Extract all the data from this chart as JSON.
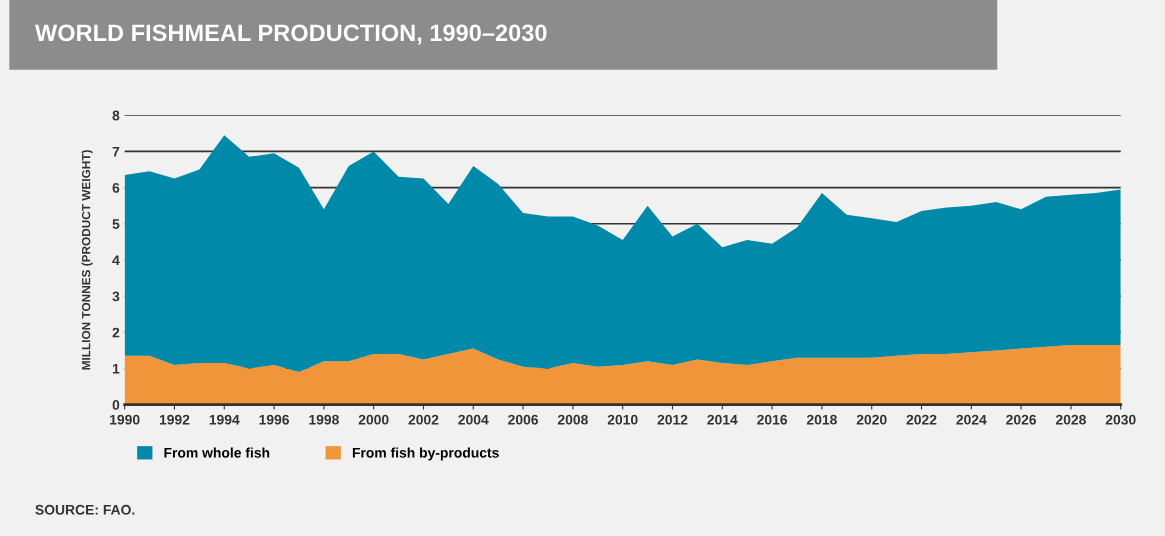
{
  "chart_data": {
    "type": "area",
    "stacked": true,
    "title": "WORLD FISHMEAL PRODUCTION, 1990–2030",
    "ylabel": "MILLION TONNES (PRODUCT WEIGHT)",
    "x": [
      1990,
      1991,
      1992,
      1993,
      1994,
      1995,
      1996,
      1997,
      1998,
      1999,
      2000,
      2001,
      2002,
      2003,
      2004,
      2005,
      2006,
      2007,
      2008,
      2009,
      2010,
      2011,
      2012,
      2013,
      2014,
      2015,
      2016,
      2017,
      2018,
      2019,
      2020,
      2021,
      2022,
      2023,
      2024,
      2025,
      2026,
      2027,
      2028,
      2029,
      2030
    ],
    "series": [
      {
        "name": "From fish by-products",
        "color": "#f0953a",
        "values": [
          1.35,
          1.35,
          1.1,
          1.15,
          1.15,
          1.0,
          1.1,
          0.9,
          1.2,
          1.2,
          1.4,
          1.4,
          1.25,
          1.4,
          1.55,
          1.25,
          1.05,
          1.0,
          1.15,
          1.05,
          1.1,
          1.2,
          1.1,
          1.25,
          1.15,
          1.1,
          1.2,
          1.3,
          1.3,
          1.3,
          1.3,
          1.35,
          1.4,
          1.4,
          1.45,
          1.5,
          1.55,
          1.6,
          1.65,
          1.65,
          1.65
        ]
      },
      {
        "name": "From whole fish",
        "color": "#0089a8",
        "values": [
          5.0,
          5.1,
          5.15,
          5.35,
          6.3,
          5.85,
          5.85,
          5.65,
          4.2,
          5.4,
          5.6,
          4.9,
          5.0,
          4.15,
          5.05,
          4.85,
          4.25,
          4.2,
          4.05,
          3.9,
          3.45,
          4.3,
          3.55,
          3.75,
          3.2,
          3.45,
          3.25,
          3.6,
          4.55,
          3.95,
          3.85,
          3.7,
          3.95,
          4.05,
          4.05,
          4.1,
          3.85,
          4.15,
          4.15,
          4.2,
          4.3
        ]
      }
    ],
    "xlim": [
      1990,
      2030
    ],
    "xticks": [
      1990,
      1992,
      1994,
      1996,
      1998,
      2000,
      2002,
      2004,
      2006,
      2008,
      2010,
      2012,
      2014,
      2016,
      2018,
      2020,
      2022,
      2024,
      2026,
      2028,
      2030
    ],
    "ylim": [
      0,
      8
    ],
    "yticks": [
      0,
      1,
      2,
      3,
      4,
      5,
      6,
      7,
      8
    ],
    "grid": "y",
    "legend": "bottom left",
    "annotations": [
      "SOURCE: FAO."
    ]
  }
}
